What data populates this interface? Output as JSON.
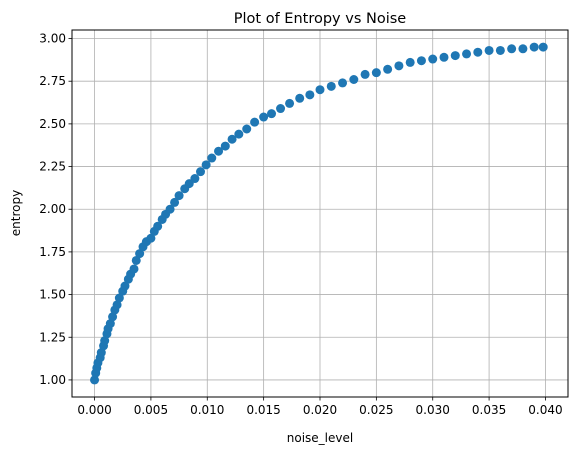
{
  "chart_data": {
    "type": "scatter",
    "title": "Plot of Entropy vs Noise",
    "xlabel": "noise_level",
    "ylabel": "entropy",
    "xlim": [
      -0.002,
      0.042
    ],
    "ylim": [
      0.9,
      3.05
    ],
    "grid": true,
    "marker_color": "#1f77b4",
    "x_ticks": [
      {
        "value": 0.0,
        "label": "0.000"
      },
      {
        "value": 0.005,
        "label": "0.005"
      },
      {
        "value": 0.01,
        "label": "0.010"
      },
      {
        "value": 0.015,
        "label": "0.015"
      },
      {
        "value": 0.02,
        "label": "0.020"
      },
      {
        "value": 0.025,
        "label": "0.025"
      },
      {
        "value": 0.03,
        "label": "0.030"
      },
      {
        "value": 0.035,
        "label": "0.035"
      },
      {
        "value": 0.04,
        "label": "0.040"
      }
    ],
    "y_ticks": [
      {
        "value": 1.0,
        "label": "1.00"
      },
      {
        "value": 1.25,
        "label": "1.25"
      },
      {
        "value": 1.5,
        "label": "1.50"
      },
      {
        "value": 1.75,
        "label": "1.75"
      },
      {
        "value": 2.0,
        "label": "2.00"
      },
      {
        "value": 2.25,
        "label": "2.25"
      },
      {
        "value": 2.5,
        "label": "2.50"
      },
      {
        "value": 2.75,
        "label": "2.75"
      },
      {
        "value": 3.0,
        "label": "3.00"
      }
    ],
    "series": [
      {
        "points": [
          [
            0.0,
            1.0
          ],
          [
            0.0001,
            1.04
          ],
          [
            0.0002,
            1.07
          ],
          [
            0.0003,
            1.1
          ],
          [
            0.0005,
            1.13
          ],
          [
            0.0006,
            1.16
          ],
          [
            0.0008,
            1.2
          ],
          [
            0.0009,
            1.23
          ],
          [
            0.0011,
            1.27
          ],
          [
            0.0012,
            1.3
          ],
          [
            0.0014,
            1.33
          ],
          [
            0.0016,
            1.37
          ],
          [
            0.0018,
            1.41
          ],
          [
            0.002,
            1.44
          ],
          [
            0.0022,
            1.48
          ],
          [
            0.0025,
            1.52
          ],
          [
            0.0027,
            1.55
          ],
          [
            0.003,
            1.59
          ],
          [
            0.0032,
            1.62
          ],
          [
            0.0035,
            1.65
          ],
          [
            0.0037,
            1.7
          ],
          [
            0.004,
            1.74
          ],
          [
            0.0043,
            1.78
          ],
          [
            0.0046,
            1.81
          ],
          [
            0.005,
            1.83
          ],
          [
            0.0053,
            1.87
          ],
          [
            0.0056,
            1.9
          ],
          [
            0.006,
            1.94
          ],
          [
            0.0063,
            1.97
          ],
          [
            0.0067,
            2.0
          ],
          [
            0.0071,
            2.04
          ],
          [
            0.0075,
            2.08
          ],
          [
            0.008,
            2.12
          ],
          [
            0.0084,
            2.15
          ],
          [
            0.0089,
            2.18
          ],
          [
            0.0094,
            2.22
          ],
          [
            0.0099,
            2.26
          ],
          [
            0.0104,
            2.3
          ],
          [
            0.011,
            2.34
          ],
          [
            0.0116,
            2.37
          ],
          [
            0.0122,
            2.41
          ],
          [
            0.0128,
            2.44
          ],
          [
            0.0135,
            2.47
          ],
          [
            0.0142,
            2.51
          ],
          [
            0.015,
            2.54
          ],
          [
            0.0157,
            2.56
          ],
          [
            0.0165,
            2.59
          ],
          [
            0.0173,
            2.62
          ],
          [
            0.0182,
            2.65
          ],
          [
            0.0191,
            2.67
          ],
          [
            0.02,
            2.7
          ],
          [
            0.021,
            2.72
          ],
          [
            0.022,
            2.74
          ],
          [
            0.023,
            2.76
          ],
          [
            0.024,
            2.79
          ],
          [
            0.025,
            2.8
          ],
          [
            0.026,
            2.82
          ],
          [
            0.027,
            2.84
          ],
          [
            0.028,
            2.86
          ],
          [
            0.029,
            2.87
          ],
          [
            0.03,
            2.88
          ],
          [
            0.031,
            2.89
          ],
          [
            0.032,
            2.9
          ],
          [
            0.033,
            2.91
          ],
          [
            0.034,
            2.92
          ],
          [
            0.035,
            2.93
          ],
          [
            0.036,
            2.93
          ],
          [
            0.037,
            2.94
          ],
          [
            0.038,
            2.94
          ],
          [
            0.039,
            2.95
          ],
          [
            0.0398,
            2.95
          ]
        ]
      }
    ]
  }
}
